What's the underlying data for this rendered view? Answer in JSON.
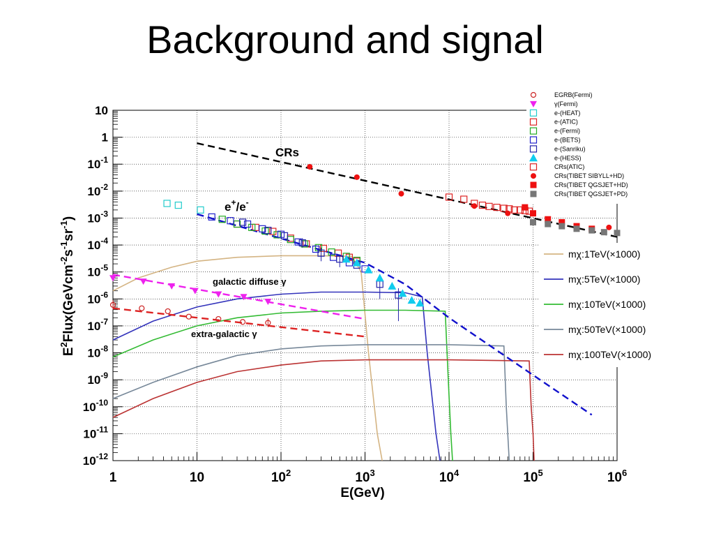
{
  "title": "Background and signal",
  "chart_data": {
    "type": "scatter",
    "xscale": "log",
    "yscale": "log",
    "xlim": [
      1,
      1000000
    ],
    "ylim": [
      1e-12,
      10
    ],
    "xlabel": "E(GeV)",
    "ylabel": "E2Flux(GeVcm-2s-1sr-1)",
    "x_ticks": [
      {
        "v": 1,
        "base": "1",
        "exp": ""
      },
      {
        "v": 10,
        "base": "10",
        "exp": ""
      },
      {
        "v": 100,
        "base": "10",
        "exp": "2"
      },
      {
        "v": 1000,
        "base": "10",
        "exp": "3"
      },
      {
        "v": 10000,
        "base": "10",
        "exp": "4"
      },
      {
        "v": 100000,
        "base": "10",
        "exp": "5"
      },
      {
        "v": 1000000,
        "base": "10",
        "exp": "6"
      }
    ],
    "y_ticks": [
      {
        "v": 10,
        "base": "10",
        "exp": ""
      },
      {
        "v": 1,
        "base": "1",
        "exp": ""
      },
      {
        "v": 0.1,
        "base": "10",
        "exp": "-1"
      },
      {
        "v": 0.01,
        "base": "10",
        "exp": "-2"
      },
      {
        "v": 0.001,
        "base": "10",
        "exp": "-3"
      },
      {
        "v": 0.0001,
        "base": "10",
        "exp": "-4"
      },
      {
        "v": 1e-05,
        "base": "10",
        "exp": "-5"
      },
      {
        "v": 1e-06,
        "base": "10",
        "exp": "-6"
      },
      {
        "v": 1e-07,
        "base": "10",
        "exp": "-7"
      },
      {
        "v": 1e-08,
        "base": "10",
        "exp": "-8"
      },
      {
        "v": 1e-09,
        "base": "10",
        "exp": "-9"
      },
      {
        "v": 1e-10,
        "base": "10",
        "exp": "-10"
      },
      {
        "v": 1e-11,
        "base": "10",
        "exp": "-11"
      },
      {
        "v": 1e-12,
        "base": "10",
        "exp": "-12"
      }
    ],
    "grid": true,
    "legend_position": "top-right",
    "annotations": {
      "crs": "CRs",
      "positron_electron": "e+/e-",
      "galactic": "galactic diffuse γ",
      "extragalactic": "extra-galactic γ"
    },
    "colors": {
      "egrb": "#cc2222",
      "fermi_gamma": "#ee22ee",
      "heat": "#22cccc",
      "atic_e": "#dd2222",
      "fermi_e": "#22aa22",
      "bets": "#2222cc",
      "sanriku": "#2222aa",
      "hess": "#11ccee",
      "crs_atic": "#dd2222",
      "tibet_sibyll": "#ee1111",
      "tibet_qgsjet_hd": "#ee1111",
      "tibet_qgsjet_pd": "#777777",
      "crs_fit": "#000000",
      "ee_fit": "#1111cc",
      "galactic_fit": "#ee22ee",
      "extragalactic_fit": "#dd2222",
      "m1TeV": "#d4b483",
      "m5TeV": "#3333bb",
      "m10TeV": "#33bb33",
      "m50TeV": "#778899",
      "m100TeV": "#bb3333"
    },
    "legend_markers": [
      {
        "label": "EGRB(Fermi)",
        "marker": "circle-open",
        "color_key": "egrb"
      },
      {
        "label": "γ(Fermi)",
        "marker": "triangle-down",
        "color_key": "fermi_gamma"
      },
      {
        "label": "e-(HEAT)",
        "marker": "square-open",
        "color_key": "heat"
      },
      {
        "label": "e-(ATIC)",
        "marker": "square-open",
        "color_key": "atic_e"
      },
      {
        "label": "e-(Fermi)",
        "marker": "square-open",
        "color_key": "fermi_e"
      },
      {
        "label": "e-(BETS)",
        "marker": "square-open",
        "color_key": "bets"
      },
      {
        "label": "e-(Sanriku)",
        "marker": "square-open",
        "color_key": "sanriku"
      },
      {
        "label": "e-(HESS)",
        "marker": "triangle-up",
        "color_key": "hess"
      },
      {
        "label": "CRs(ATIC)",
        "marker": "square-open",
        "color_key": "crs_atic"
      },
      {
        "label": "CRs(TIBET SIBYLL+HD)",
        "marker": "circle",
        "color_key": "tibet_sibyll"
      },
      {
        "label": "CRs(TIBET QGSJET+HD)",
        "marker": "square",
        "color_key": "tibet_qgsjet_hd"
      },
      {
        "label": "CRs(TIBET QGSJET+PD)",
        "marker": "square",
        "color_key": "tibet_qgsjet_pd"
      }
    ],
    "legend_lines": [
      {
        "label": "mχ:1TeV(×1000)",
        "color_key": "m1TeV"
      },
      {
        "label": "mχ:5TeV(×1000)",
        "color_key": "m5TeV"
      },
      {
        "label": "mχ:10TeV(×1000)",
        "color_key": "m10TeV"
      },
      {
        "label": "mχ:50TeV(×1000)",
        "color_key": "m50TeV"
      },
      {
        "label": "mχ:100TeV(×1000)",
        "color_key": "m100TeV"
      }
    ],
    "series": [
      {
        "name": "EGRB(Fermi)",
        "marker": "circle-open",
        "color_key": "egrb",
        "x": [
          1,
          2.2,
          4.5,
          8,
          18,
          35,
          70
        ],
        "y": [
          6e-07,
          4.5e-07,
          3.5e-07,
          2.2e-07,
          1.8e-07,
          1.4e-07,
          1.3e-07
        ],
        "err": [
          [
            4e-07,
            9e-07
          ],
          null,
          null,
          null,
          null,
          null,
          [
            9e-08,
            1.9e-07
          ]
        ]
      },
      {
        "name": "γ(Fermi)",
        "marker": "triangle-down",
        "color_key": "fermi_gamma",
        "x": [
          1,
          2.3,
          5,
          9.5,
          18,
          36,
          70
        ],
        "y": [
          6e-06,
          4.5e-06,
          3e-06,
          2e-06,
          1.5e-06,
          1.2e-06,
          8e-07
        ]
      },
      {
        "name": "e-(HEAT)",
        "marker": "square-open",
        "color_key": "heat",
        "x": [
          4.4,
          6,
          11
        ],
        "y": [
          0.0035,
          0.003,
          0.002
        ]
      },
      {
        "name": "e-(ATIC)",
        "marker": "square-open",
        "color_key": "atic_e",
        "x": [
          30,
          50,
          80,
          130,
          200,
          320,
          480,
          650,
          800
        ],
        "y": [
          0.0006,
          0.00045,
          0.00032,
          0.00018,
          0.00011,
          7.5e-05,
          5e-05,
          3.5e-05,
          2.5e-05
        ]
      },
      {
        "name": "e-(Fermi)",
        "marker": "square-open",
        "color_key": "fermi_e",
        "x": [
          20,
          30,
          45,
          65,
          90,
          130,
          190,
          280,
          400,
          600,
          800
        ],
        "y": [
          0.0009,
          0.0006,
          0.00045,
          0.00033,
          0.00024,
          0.00016,
          0.00011,
          8e-05,
          5.5e-05,
          3.8e-05,
          2.7e-05
        ]
      },
      {
        "name": "e-(BETS)",
        "marker": "square-open",
        "color_key": "bets",
        "x": [
          15,
          25,
          40,
          60,
          100,
          160,
          260,
          420,
          650,
          1000
        ],
        "y": [
          0.0011,
          0.0008,
          0.0006,
          0.0004,
          0.00025,
          0.00013,
          7e-05,
          3.5e-05,
          2.2e-05,
          1.3e-05
        ]
      },
      {
        "name": "e-(Sanriku)",
        "marker": "square-open",
        "color_key": "sanriku",
        "x": [
          35,
          70,
          110,
          180,
          300,
          500,
          800,
          1500,
          2500
        ],
        "y": [
          0.0007,
          0.00035,
          0.00022,
          0.00012,
          5e-05,
          3e-05,
          1.8e-05,
          3.5e-06,
          1.4e-06
        ],
        "err": [
          null,
          null,
          null,
          [
            8e-05,
            0.00018
          ],
          [
            2.5e-05,
            8e-05
          ],
          [
            1.5e-05,
            4.5e-05
          ],
          null,
          [
            1e-06,
            8e-06
          ],
          [
            1.5e-07,
            2.5e-06
          ]
        ]
      },
      {
        "name": "e-(HESS)",
        "marker": "triangle-up",
        "color_key": "hess",
        "x": [
          600,
          800,
          1100,
          1500,
          2100,
          2800,
          3600,
          4500
        ],
        "y": [
          3e-05,
          2.2e-05,
          1.2e-05,
          6e-06,
          3e-06,
          1.6e-06,
          9e-07,
          7e-07
        ]
      },
      {
        "name": "CRs(ATIC)",
        "marker": "square-open",
        "color_key": "crs_atic",
        "x": [
          10000,
          15000,
          20000,
          25000,
          30000,
          37000,
          45000,
          52000,
          60000,
          70000,
          80000,
          90000
        ],
        "y": [
          0.006,
          0.005,
          0.0035,
          0.003,
          0.0027,
          0.0025,
          0.0023,
          0.0022,
          0.002,
          0.002,
          0.0019,
          0.0018
        ]
      },
      {
        "name": "CRs(TIBET SIBYLL+HD)",
        "marker": "circle",
        "color_key": "tibet_sibyll",
        "x": [
          220,
          800,
          2700,
          20000,
          50000,
          150000,
          800000
        ],
        "y": [
          0.08,
          0.033,
          0.008,
          0.0028,
          0.0015,
          0.0008,
          0.00045
        ]
      },
      {
        "name": "CRs(TIBET QGSJET+HD)",
        "marker": "square",
        "color_key": "tibet_qgsjet_hd",
        "x": [
          80000,
          100000,
          150000,
          220000,
          330000,
          500000
        ],
        "y": [
          0.0025,
          0.0015,
          0.0009,
          0.0007,
          0.0005,
          0.0004
        ]
      },
      {
        "name": "CRs(TIBET QGSJET+PD)",
        "marker": "square",
        "color_key": "tibet_qgsjet_pd",
        "x": [
          100000,
          150000,
          220000,
          330000,
          500000,
          700000,
          1000000
        ],
        "y": [
          0.0007,
          0.0006,
          0.0005,
          0.0004,
          0.00035,
          0.0003,
          0.00028
        ]
      }
    ],
    "fit_lines": [
      {
        "name": "CRs",
        "color_key": "crs_fit",
        "dash": "10,6",
        "x": [
          10,
          1000000
        ],
        "y": [
          0.6,
          0.0002
        ]
      },
      {
        "name": "e+/e-",
        "color_key": "ee_fit",
        "dash": "10,6",
        "x": [
          10,
          1000,
          3000,
          10000,
          100000,
          500000
        ],
        "y": [
          0.0014,
          2.2e-05,
          3.5e-06,
          2e-07,
          1.5e-09,
          5e-11
        ]
      },
      {
        "name": "galactic diffuse",
        "color_key": "galactic_fit",
        "dash": "10,6",
        "x": [
          1,
          1000
        ],
        "y": [
          8e-06,
          1.8e-07
        ]
      },
      {
        "name": "extra-galactic",
        "color_key": "extragalactic_fit",
        "dash": "10,6",
        "x": [
          1,
          1000
        ],
        "y": [
          4.5e-07,
          4e-08
        ]
      }
    ],
    "signal_curves": [
      {
        "name": "mχ:1TeV(×1000)",
        "color_key": "m1TeV",
        "x": [
          1,
          2,
          5,
          10,
          30,
          100,
          300,
          700,
          900,
          1100,
          1400,
          1600
        ],
        "y": [
          2e-06,
          6e-06,
          1.5e-05,
          2.5e-05,
          3.5e-05,
          4e-05,
          4e-05,
          3.8e-05,
          1e-05,
          1e-08,
          1e-11,
          1e-12
        ]
      },
      {
        "name": "mχ:5TeV(×1000)",
        "color_key": "m5TeV",
        "x": [
          1,
          3,
          10,
          30,
          100,
          300,
          1000,
          3000,
          4800,
          5500,
          7000,
          7800
        ],
        "y": [
          3e-08,
          1.5e-07,
          5e-07,
          1e-06,
          1.5e-06,
          1.8e-06,
          1.8e-06,
          1.7e-06,
          1.2e-06,
          1e-08,
          1e-11,
          1e-12
        ]
      },
      {
        "name": "mχ:10TeV(×1000)",
        "color_key": "m10TeV",
        "x": [
          1,
          3,
          10,
          30,
          100,
          300,
          1000,
          3000,
          9000,
          9800,
          10500,
          11000
        ],
        "y": [
          7e-09,
          3e-08,
          1e-07,
          2e-07,
          3e-07,
          3.5e-07,
          3.8e-07,
          3.8e-07,
          3.5e-07,
          1e-09,
          1e-11,
          1e-12
        ]
      },
      {
        "name": "mχ:50TeV(×1000)",
        "color_key": "m50TeV",
        "x": [
          1,
          3,
          10,
          30,
          100,
          300,
          1000,
          10000,
          45000,
          48000,
          50000,
          52000
        ],
        "y": [
          2e-10,
          8e-10,
          3e-09,
          8e-09,
          1.4e-08,
          1.8e-08,
          2e-08,
          2e-08,
          1.8e-08,
          1e-10,
          1e-11,
          1e-12
        ]
      },
      {
        "name": "mχ:100TeV(×1000)",
        "color_key": "m100TeV",
        "x": [
          1,
          3,
          10,
          30,
          100,
          300,
          1000,
          10000,
          90000,
          95000,
          100000,
          103000
        ],
        "y": [
          4e-11,
          2e-10,
          8e-10,
          2e-09,
          3.5e-09,
          5e-09,
          5.5e-09,
          5.5e-09,
          5e-09,
          1e-10,
          1e-11,
          1e-12
        ]
      }
    ]
  }
}
